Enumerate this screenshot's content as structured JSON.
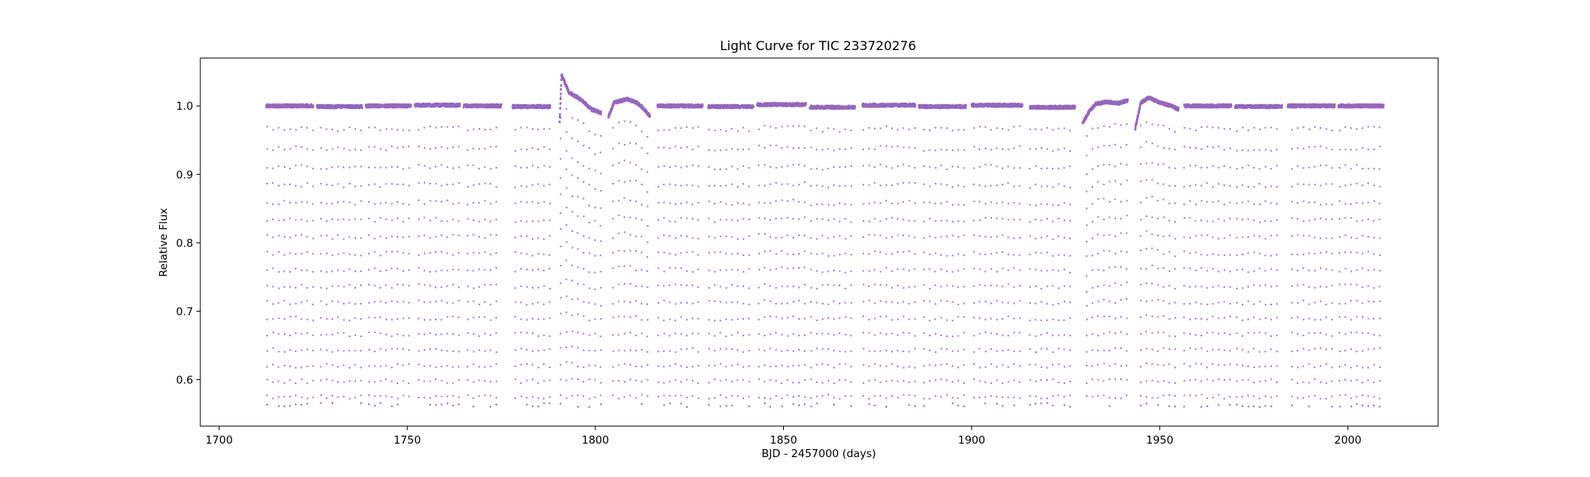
{
  "chart_data": {
    "type": "scatter",
    "title": "Light Curve for TIC 233720276",
    "xlabel": "BJD - 2457000 (days)",
    "ylabel": "Relative Flux",
    "xlim": [
      1695,
      2024
    ],
    "ylim": [
      0.532,
      1.07
    ],
    "x_ticks": [
      1700,
      1750,
      1800,
      1850,
      1900,
      1950,
      2000
    ],
    "y_ticks": [
      0.6,
      0.7,
      0.8,
      0.9,
      1.0
    ],
    "grid": false,
    "legend": "none",
    "marker_color": "#9467bd",
    "eclipse_period_days": 1.52,
    "eclipse_depth_min_flux": 0.575,
    "segments": [
      {
        "x": [
          1712.5,
          1725.0
        ],
        "baseline": 1.0
      },
      {
        "x": [
          1726.0,
          1738.0
        ],
        "baseline": 0.999
      },
      {
        "x": [
          1739.0,
          1751.0
        ],
        "baseline": 1.0
      },
      {
        "x": [
          1752.0,
          1764.0
        ],
        "baseline": 1.001
      },
      {
        "x": [
          1765.0,
          1775.0
        ],
        "baseline": 1.0
      },
      {
        "x": [
          1778.0,
          1788.0
        ],
        "baseline": 0.999
      },
      {
        "x": [
          1790.5,
          1801.5
        ],
        "baseline": 1.0,
        "trend": [
          [
            1790.5,
            0.975
          ],
          [
            1791.0,
            1.045
          ],
          [
            1793.0,
            1.02
          ],
          [
            1796.0,
            1.01
          ],
          [
            1799.0,
            0.995
          ],
          [
            1801.5,
            0.99
          ]
        ]
      },
      {
        "x": [
          1803.5,
          1814.5
        ],
        "baseline": 1.0,
        "trend": [
          [
            1803.5,
            0.985
          ],
          [
            1805.0,
            1.005
          ],
          [
            1808.5,
            1.01
          ],
          [
            1811.0,
            1.005
          ],
          [
            1813.0,
            0.995
          ],
          [
            1814.5,
            0.985
          ]
        ]
      },
      {
        "x": [
          1816.5,
          1828.5
        ],
        "baseline": 1.0
      },
      {
        "x": [
          1830.0,
          1842.0
        ],
        "baseline": 0.999
      },
      {
        "x": [
          1843.0,
          1856.0
        ],
        "baseline": 1.002
      },
      {
        "x": [
          1857.0,
          1869.0
        ],
        "baseline": 0.998
      },
      {
        "x": [
          1871.0,
          1885.0
        ],
        "baseline": 1.001
      },
      {
        "x": [
          1886.0,
          1898.5
        ],
        "baseline": 0.999
      },
      {
        "x": [
          1900.0,
          1913.5
        ],
        "baseline": 1.001
      },
      {
        "x": [
          1915.5,
          1927.5
        ],
        "baseline": 0.998
      },
      {
        "x": [
          1929.5,
          1941.5
        ],
        "baseline": 1.0,
        "trend": [
          [
            1929.5,
            0.975
          ],
          [
            1931.0,
            0.99
          ],
          [
            1933.0,
            1.003
          ],
          [
            1936.0,
            1.006
          ],
          [
            1939.0,
            1.004
          ],
          [
            1941.5,
            1.008
          ]
        ]
      },
      {
        "x": [
          1943.5,
          1955.0
        ],
        "baseline": 1.0,
        "trend": [
          [
            1943.5,
            0.968
          ],
          [
            1945.0,
            1.005
          ],
          [
            1947.0,
            1.012
          ],
          [
            1950.0,
            1.005
          ],
          [
            1953.0,
            1.0
          ],
          [
            1955.0,
            0.995
          ]
        ]
      },
      {
        "x": [
          1956.5,
          1969.0
        ],
        "baseline": 1.0
      },
      {
        "x": [
          1970.0,
          1982.5
        ],
        "baseline": 0.999
      },
      {
        "x": [
          1984.0,
          1996.5
        ],
        "baseline": 1.0
      },
      {
        "x": [
          1997.5,
          2009.5
        ],
        "baseline": 1.0
      }
    ]
  }
}
